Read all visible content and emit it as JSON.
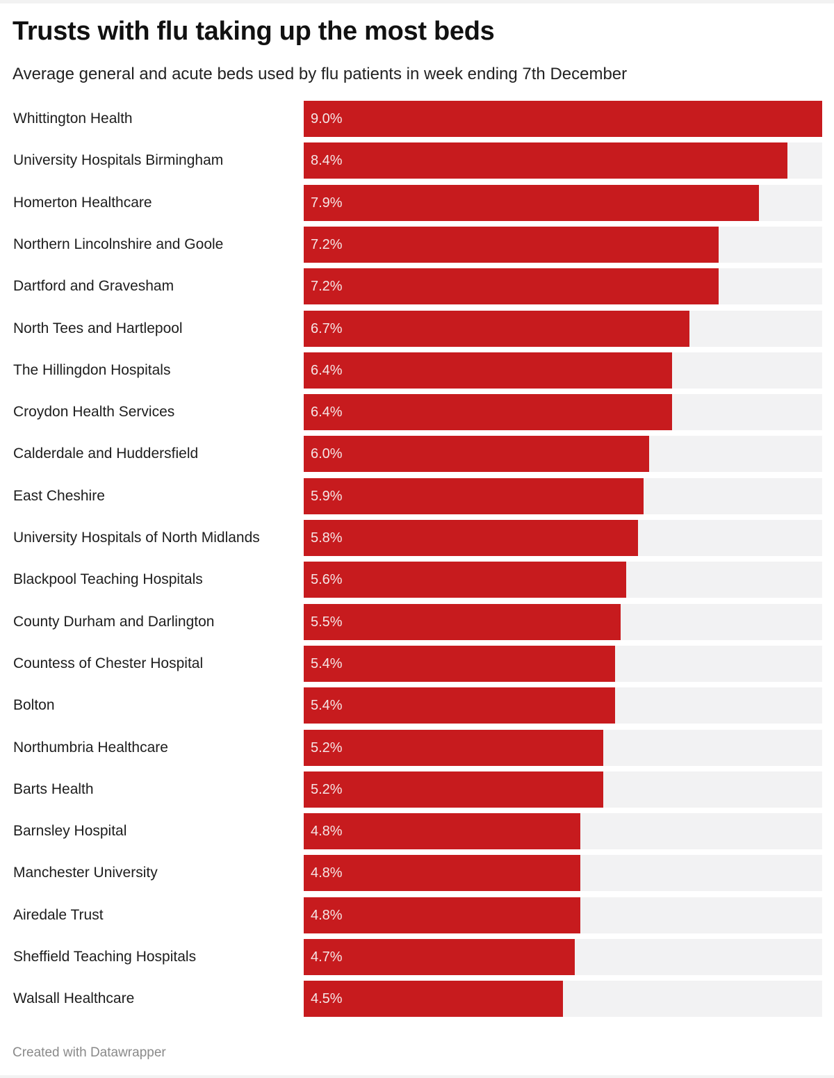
{
  "chart_data": {
    "type": "bar",
    "orientation": "horizontal",
    "title": "Trusts with flu taking up the most beds",
    "subtitle": "Average general and acute beds used by flu patients in week ending 7th December",
    "categories": [
      "Whittington Health",
      "University Hospitals Birmingham",
      "Homerton Healthcare",
      "Northern Lincolnshire and Goole",
      "Dartford and Gravesham",
      "North Tees and Hartlepool",
      "The Hillingdon Hospitals",
      "Croydon Health Services",
      "Calderdale and Huddersfield",
      "East Cheshire",
      "University Hospitals of North Midlands",
      "Blackpool Teaching Hospitals",
      "County Durham and Darlington",
      "Countess of Chester Hospital",
      "Bolton",
      "Northumbria Healthcare",
      "Barts Health",
      "Barnsley Hospital",
      "Manchester University",
      "Airedale Trust",
      "Sheffield Teaching Hospitals",
      "Walsall Healthcare"
    ],
    "values": [
      9.0,
      8.4,
      7.9,
      7.2,
      7.2,
      6.7,
      6.4,
      6.4,
      6.0,
      5.9,
      5.8,
      5.6,
      5.5,
      5.4,
      5.4,
      5.2,
      5.2,
      4.8,
      4.8,
      4.8,
      4.7,
      4.5
    ],
    "value_labels": [
      "9.0%",
      "8.4%",
      "7.9%",
      "7.2%",
      "7.2%",
      "6.7%",
      "6.4%",
      "6.4%",
      "6.0%",
      "5.9%",
      "5.8%",
      "5.6%",
      "5.5%",
      "5.4%",
      "5.4%",
      "5.2%",
      "5.2%",
      "4.8%",
      "4.8%",
      "4.8%",
      "4.7%",
      "4.5%"
    ],
    "xlim": [
      0,
      9.0
    ],
    "unit": "%",
    "grid": false,
    "colors": {
      "bar": "#c71b1e",
      "background_bar": "#f2f2f3"
    }
  },
  "footer": "Created with Datawrapper"
}
